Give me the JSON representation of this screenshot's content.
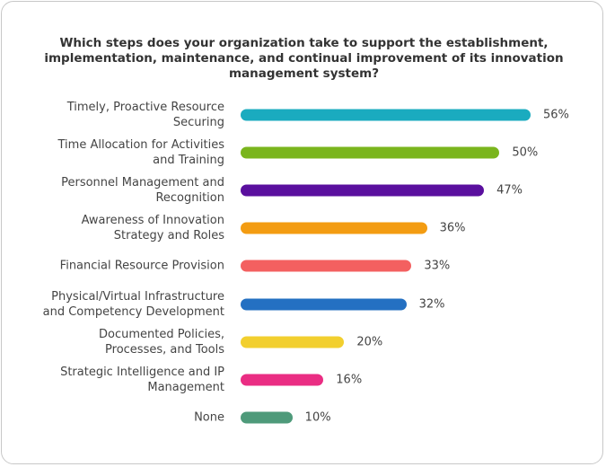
{
  "chart_data": {
    "type": "bar",
    "orientation": "horizontal",
    "title": "Which steps does your organization take to support the establishment,\nimplementation, maintenance, and continual improvement of its innovation\nmanagement system?",
    "categories": [
      "Timely, Proactive Resource\nSecuring",
      "Time Allocation for Activities\nand Training",
      "Personnel Management and\nRecognition",
      "Awareness of Innovation\nStrategy and Roles",
      "Financial Resource Provision",
      "Physical/Virtual Infrastructure\nand Competency Development",
      "Documented Policies,\nProcesses, and Tools",
      "Strategic Intelligence and IP\nManagement",
      "None"
    ],
    "values": [
      56,
      50,
      47,
      36,
      33,
      32,
      20,
      16,
      10
    ],
    "value_labels": [
      "56%",
      "50%",
      "47%",
      "36%",
      "33%",
      "32%",
      "20%",
      "16%",
      "10%"
    ],
    "colors": [
      "#1aabbf",
      "#7ab51d",
      "#5a0f9e",
      "#f39c12",
      "#f36060",
      "#2470c2",
      "#f2cf2e",
      "#ea2d83",
      "#4e9a7a"
    ]
  }
}
